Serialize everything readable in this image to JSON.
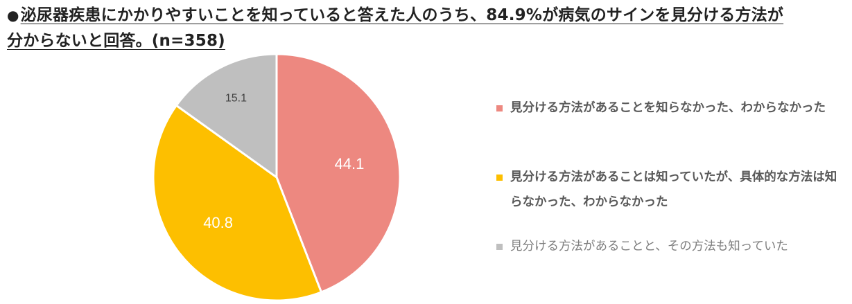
{
  "title": {
    "bullet": "●",
    "line1": "泌尿器疾患にかかりやすいことを知っていると答えた人のうち、84.9%が病気のサインを見分ける方法が",
    "line2": "分からないと回答。(n=358)"
  },
  "colors": {
    "slice_0": "#ed8880",
    "slice_1": "#fdbf00",
    "slice_2": "#bfbfbf",
    "label_light": "#ffffff",
    "label_dark": "#404040",
    "separator": "#ffffff"
  },
  "legend": {
    "items": [
      "見分ける方法があることを知らなかった、わからなかった",
      "見分ける方法があることは知っていたが、具体的な方法は知らなかった、わからなかった",
      "見分ける方法があることと、その方法も知っていた"
    ]
  },
  "chart_data": {
    "type": "pie",
    "slices": [
      {
        "label": "見分ける方法があることを知らなかった、わからなかった",
        "value": 44.1,
        "display": "44.1"
      },
      {
        "label": "見分ける方法があることは知っていたが、具体的な方法は知らなかった、わからなかった",
        "value": 40.8,
        "display": "40.8"
      },
      {
        "label": "見分ける方法があることと、その方法も知っていた",
        "value": 15.1,
        "display": "15.1"
      }
    ],
    "start": "12 o'clock",
    "direction": "clockwise",
    "legend_position": "right"
  }
}
